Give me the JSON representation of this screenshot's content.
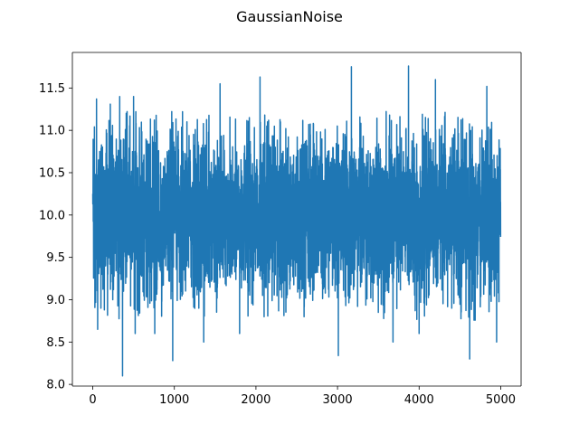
{
  "chart_data": {
    "type": "line",
    "title": "GaussianNoise",
    "xlabel": "",
    "ylabel": "",
    "xlim": [
      -250,
      5250
    ],
    "ylim": [
      7.98,
      11.92
    ],
    "x_ticks": [
      0,
      1000,
      2000,
      3000,
      4000,
      5000
    ],
    "x_tick_labels": [
      "0",
      "1000",
      "2000",
      "3000",
      "4000",
      "5000"
    ],
    "y_ticks": [
      8.0,
      8.5,
      9.0,
      9.5,
      10.0,
      10.5,
      11.0,
      11.5
    ],
    "y_tick_labels": [
      "8.0",
      "8.5",
      "9.0",
      "9.5",
      "10.0",
      "10.5",
      "11.0",
      "11.5"
    ],
    "grid": false,
    "line_color": "#1f77b4",
    "series": [
      {
        "n_points": 5000,
        "x_start": 0,
        "x_step": 1,
        "mean": 10.0,
        "std": 0.45,
        "typical_band": [
          9.1,
          10.9
        ],
        "highlighted_extremes": [
          {
            "x": 33,
            "y": 9.05
          },
          {
            "x": 46,
            "y": 11.37
          },
          {
            "x": 60,
            "y": 8.65
          },
          {
            "x": 100,
            "y": 8.9
          },
          {
            "x": 215,
            "y": 11.31
          },
          {
            "x": 245,
            "y": 9.0
          },
          {
            "x": 330,
            "y": 11.4
          },
          {
            "x": 365,
            "y": 8.1
          },
          {
            "x": 410,
            "y": 11.2
          },
          {
            "x": 500,
            "y": 11.4
          },
          {
            "x": 520,
            "y": 8.6
          },
          {
            "x": 760,
            "y": 8.6
          },
          {
            "x": 980,
            "y": 8.28
          },
          {
            "x": 1100,
            "y": 11.22
          },
          {
            "x": 1300,
            "y": 8.9
          },
          {
            "x": 1360,
            "y": 8.5
          },
          {
            "x": 1560,
            "y": 11.55
          },
          {
            "x": 1800,
            "y": 8.6
          },
          {
            "x": 2050,
            "y": 11.63
          },
          {
            "x": 2100,
            "y": 8.8
          },
          {
            "x": 2300,
            "y": 11.1
          },
          {
            "x": 2590,
            "y": 8.8
          },
          {
            "x": 3010,
            "y": 8.34
          },
          {
            "x": 3170,
            "y": 11.75
          },
          {
            "x": 3500,
            "y": 8.85
          },
          {
            "x": 3680,
            "y": 8.5
          },
          {
            "x": 3870,
            "y": 11.76
          },
          {
            "x": 4000,
            "y": 8.6
          },
          {
            "x": 4200,
            "y": 11.6
          },
          {
            "x": 4400,
            "y": 8.9
          },
          {
            "x": 4620,
            "y": 8.3
          },
          {
            "x": 4830,
            "y": 11.52
          },
          {
            "x": 4950,
            "y": 8.5
          }
        ]
      }
    ]
  }
}
